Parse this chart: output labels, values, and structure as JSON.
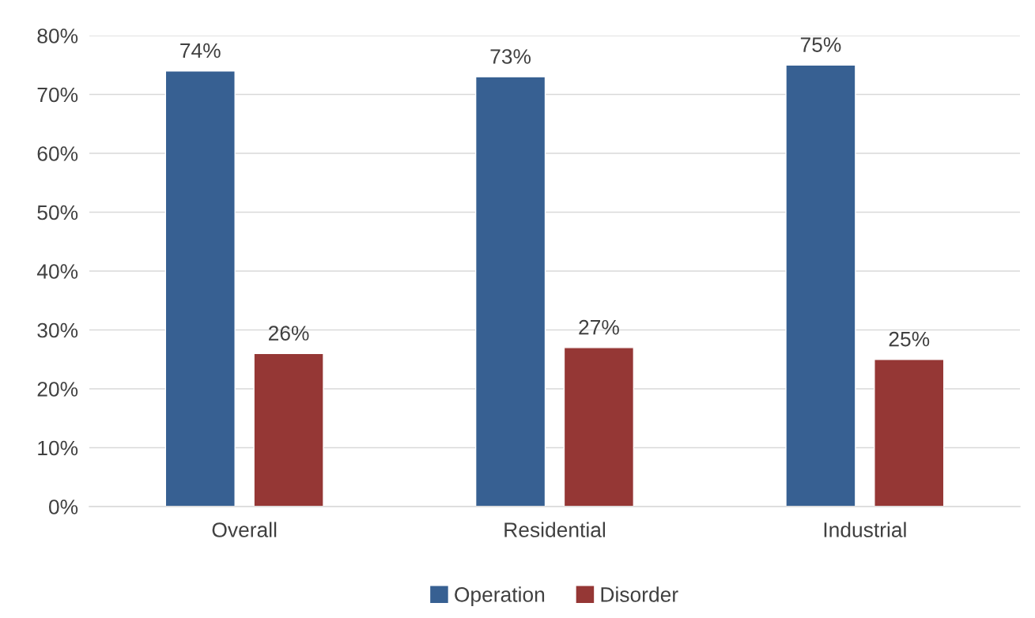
{
  "chart_data": {
    "type": "bar",
    "categories": [
      "Overall",
      "Residential",
      "Industrial"
    ],
    "series": [
      {
        "name": "Operation",
        "color": "#376092",
        "values": [
          74,
          73,
          75
        ],
        "value_labels": [
          "74%",
          "73%",
          "75%"
        ]
      },
      {
        "name": "Disorder",
        "color": "#953735",
        "values": [
          26,
          27,
          25
        ],
        "value_labels": [
          "26%",
          "27%",
          "25%"
        ]
      }
    ],
    "ylim": [
      0,
      80
    ],
    "yticks": [
      {
        "value": 0,
        "label": "0%"
      },
      {
        "value": 10,
        "label": "10%"
      },
      {
        "value": 20,
        "label": "20%"
      },
      {
        "value": 30,
        "label": "30%"
      },
      {
        "value": 40,
        "label": "40%"
      },
      {
        "value": 50,
        "label": "50%"
      },
      {
        "value": 60,
        "label": "60%"
      },
      {
        "value": 70,
        "label": "70%"
      },
      {
        "value": 80,
        "label": "80%"
      }
    ],
    "grid": "y",
    "legend": "bottom"
  }
}
